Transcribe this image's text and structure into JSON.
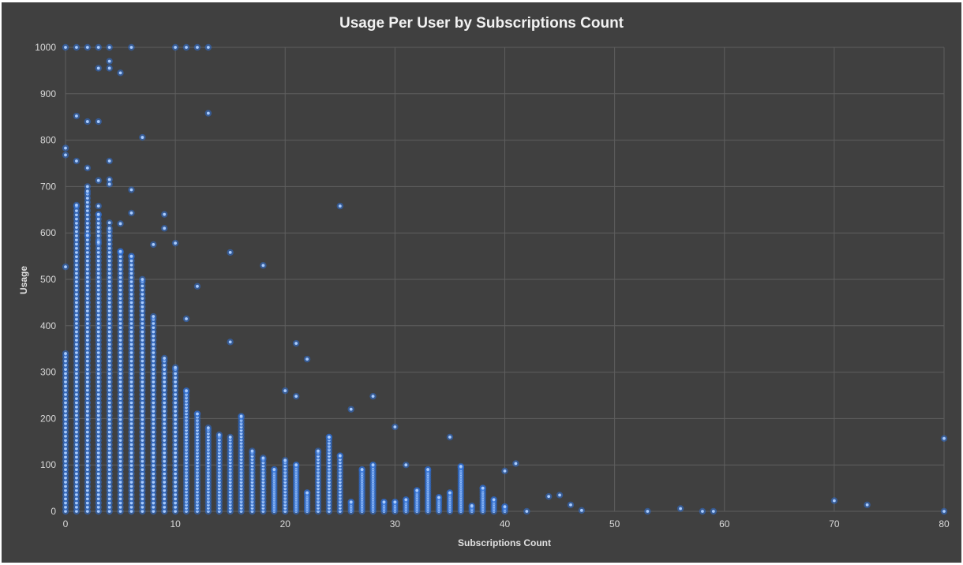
{
  "chart_data": {
    "type": "scatter",
    "title": "Usage Per User by Subscriptions Count",
    "xlabel": "Subscriptions Count",
    "ylabel": "Usage",
    "xlim": [
      0,
      80
    ],
    "ylim": [
      0,
      1000
    ],
    "xticks": [
      "0",
      "10",
      "20",
      "30",
      "40",
      "50",
      "60",
      "70",
      "80"
    ],
    "yticks": [
      "0",
      "100",
      "200",
      "300",
      "400",
      "500",
      "600",
      "700",
      "800",
      "900",
      "1000"
    ],
    "grid": true,
    "legend": "none",
    "marker_color": "#2e6fd6",
    "marker_highlight": "#a9ccff",
    "background": "#404040",
    "series": [
      {
        "columns": [
          [
            0,
            340
          ],
          [
            1,
            660
          ],
          [
            2,
            690
          ],
          [
            3,
            640
          ],
          [
            4,
            610
          ],
          [
            5,
            560
          ],
          [
            6,
            550
          ],
          [
            7,
            500
          ],
          [
            8,
            420
          ],
          [
            9,
            330
          ],
          [
            10,
            310
          ],
          [
            11,
            260
          ],
          [
            12,
            210
          ],
          [
            13,
            180
          ],
          [
            14,
            165
          ],
          [
            15,
            160
          ],
          [
            16,
            205
          ],
          [
            17,
            130
          ],
          [
            18,
            115
          ],
          [
            19,
            90
          ],
          [
            20,
            110
          ],
          [
            21,
            100
          ],
          [
            22,
            40
          ],
          [
            23,
            130
          ],
          [
            24,
            160
          ],
          [
            25,
            120
          ],
          [
            26,
            20
          ],
          [
            27,
            90
          ],
          [
            28,
            100
          ],
          [
            29,
            20
          ],
          [
            30,
            20
          ],
          [
            31,
            25
          ],
          [
            32,
            45
          ],
          [
            33,
            90
          ],
          [
            34,
            30
          ],
          [
            35,
            40
          ],
          [
            36,
            95
          ],
          [
            37,
            12
          ],
          [
            38,
            50
          ],
          [
            39,
            25
          ],
          [
            40,
            10
          ]
        ],
        "points": [
          [
            0,
            1000
          ],
          [
            1,
            1000
          ],
          [
            2,
            1000
          ],
          [
            3,
            1000
          ],
          [
            4,
            1000
          ],
          [
            6,
            1000
          ],
          [
            10,
            1000
          ],
          [
            11,
            1000
          ],
          [
            12,
            1000
          ],
          [
            13,
            1000
          ],
          [
            3,
            955
          ],
          [
            4,
            955
          ],
          [
            4,
            970
          ],
          [
            5,
            945
          ],
          [
            13,
            858
          ],
          [
            1,
            852
          ],
          [
            2,
            840
          ],
          [
            3,
            840
          ],
          [
            7,
            806
          ],
          [
            0,
            783
          ],
          [
            0,
            768
          ],
          [
            1,
            755
          ],
          [
            2,
            740
          ],
          [
            4,
            755
          ],
          [
            2,
            700
          ],
          [
            3,
            713
          ],
          [
            4,
            715
          ],
          [
            4,
            705
          ],
          [
            6,
            693
          ],
          [
            3,
            658
          ],
          [
            4,
            622
          ],
          [
            5,
            620
          ],
          [
            6,
            643
          ],
          [
            9,
            640
          ],
          [
            9,
            610
          ],
          [
            2,
            595
          ],
          [
            3,
            580
          ],
          [
            5,
            560
          ],
          [
            8,
            575
          ],
          [
            10,
            578
          ],
          [
            15,
            558
          ],
          [
            0,
            527
          ],
          [
            12,
            485
          ],
          [
            18,
            530
          ],
          [
            25,
            658
          ],
          [
            11,
            415
          ],
          [
            15,
            365
          ],
          [
            21,
            362
          ],
          [
            22,
            328
          ],
          [
            20,
            260
          ],
          [
            21,
            248
          ],
          [
            24,
            160
          ],
          [
            26,
            220
          ],
          [
            28,
            248
          ],
          [
            30,
            182
          ],
          [
            31,
            100
          ],
          [
            35,
            160
          ],
          [
            36,
            97
          ],
          [
            40,
            87
          ],
          [
            41,
            103
          ],
          [
            44,
            32
          ],
          [
            45,
            35
          ],
          [
            46,
            14
          ],
          [
            47,
            2
          ],
          [
            42,
            0
          ],
          [
            53,
            0
          ],
          [
            56,
            6
          ],
          [
            58,
            0
          ],
          [
            59,
            0
          ],
          [
            70,
            23
          ],
          [
            73,
            14
          ],
          [
            80,
            157
          ],
          [
            80,
            0
          ]
        ]
      }
    ]
  }
}
